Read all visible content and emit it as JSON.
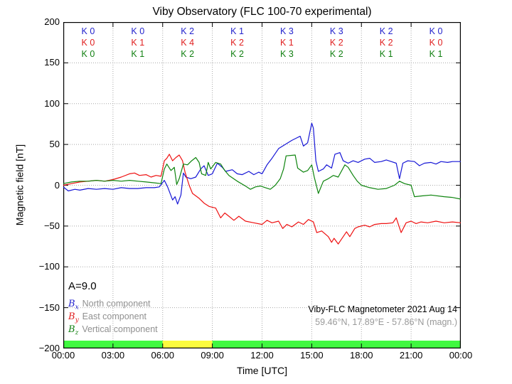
{
  "title": "Viby Observatory (FLC 100-70 experimental)",
  "axes": {
    "ylabel": "Magnetic field [nT]",
    "xlabel": "Time [UTC]",
    "y_ticks": [
      "200",
      "150",
      "100",
      "50",
      "0",
      "−50",
      "−100",
      "−150",
      "−200"
    ],
    "x_ticks": [
      "00:00",
      "03:00",
      "06:00",
      "09:00",
      "12:00",
      "15:00",
      "18:00",
      "21:00",
      "00:00"
    ]
  },
  "k_indices": {
    "rows": [
      {
        "component": "Bx-north",
        "color": "#2323cd",
        "values": [
          "K 0",
          "K 0",
          "K 2",
          "K 1",
          "K 3",
          "K 3",
          "K 2",
          "K 0"
        ]
      },
      {
        "component": "By-east",
        "color": "#e02020",
        "values": [
          "K 0",
          "K 1",
          "K 4",
          "K 2",
          "K 1",
          "K 2",
          "K 2",
          "K 0"
        ]
      },
      {
        "component": "Bz-vertical",
        "color": "#128012",
        "values": [
          "K 0",
          "K 1",
          "K 2",
          "K 2",
          "K 3",
          "K 2",
          "K 1",
          "K 1"
        ]
      }
    ]
  },
  "annotations": {
    "a_index": "A=9.0",
    "station_line1": "Viby-FLC Magnetometer 2021 Aug 14",
    "station_line2": "59.46°N, 17.89°E - 57.86°N (magn.)"
  },
  "legend": [
    {
      "symbol": "B",
      "sub": "x",
      "color": "#2323cd",
      "label": "North component"
    },
    {
      "symbol": "B",
      "sub": "y",
      "color": "#e02020",
      "label": "East component"
    },
    {
      "symbol": "B",
      "sub": "z",
      "color": "#128012",
      "label": "Vertical component"
    }
  ],
  "activity_bar": {
    "segments": [
      {
        "start_hour": 0,
        "end_hour": 6,
        "color": "#40f840"
      },
      {
        "start_hour": 6,
        "end_hour": 9,
        "color": "#fbfb3e"
      },
      {
        "start_hour": 9,
        "end_hour": 24,
        "color": "#40f840"
      }
    ]
  },
  "chart_data": {
    "type": "line",
    "title": "Viby Observatory (FLC 100-70 experimental)",
    "xlabel": "Time [UTC]",
    "ylabel": "Magnetic field [nT]",
    "xlim_hours": [
      0,
      24
    ],
    "ylim": [
      -200,
      200
    ],
    "x_tick_step_hours": 3,
    "y_tick_step": 50,
    "grid": true,
    "legend_position": "lower left",
    "a_index": 9.0,
    "k_index_rows": {
      "Bx": [
        0,
        0,
        2,
        1,
        3,
        3,
        2,
        0
      ],
      "By": [
        0,
        1,
        4,
        2,
        1,
        2,
        2,
        0
      ],
      "Bz": [
        0,
        1,
        2,
        2,
        3,
        2,
        1,
        1
      ]
    },
    "series": [
      {
        "id": "bx-north",
        "name": "Bx North component",
        "color": "#1717d6",
        "points": [
          [
            0,
            -2
          ],
          [
            0.3,
            -7
          ],
          [
            0.7,
            -5
          ],
          [
            1,
            -6
          ],
          [
            1.5,
            -4
          ],
          [
            2,
            -5
          ],
          [
            2.5,
            -4
          ],
          [
            3,
            -5
          ],
          [
            3.5,
            -3
          ],
          [
            4,
            -4
          ],
          [
            4.5,
            -4
          ],
          [
            5,
            -3
          ],
          [
            5.5,
            -3
          ],
          [
            5.8,
            -2
          ],
          [
            6.1,
            6
          ],
          [
            6.3,
            -2
          ],
          [
            6.6,
            -18
          ],
          [
            6.75,
            -14
          ],
          [
            6.9,
            -23
          ],
          [
            7.1,
            -12
          ],
          [
            7.25,
            15
          ],
          [
            7.4,
            10
          ],
          [
            7.7,
            8
          ],
          [
            8,
            10
          ],
          [
            8.3,
            20
          ],
          [
            8.5,
            24
          ],
          [
            8.75,
            12
          ],
          [
            9,
            14
          ],
          [
            9.3,
            27
          ],
          [
            9.6,
            22
          ],
          [
            9.8,
            17
          ],
          [
            10.2,
            19
          ],
          [
            10.5,
            14
          ],
          [
            10.8,
            13
          ],
          [
            11.2,
            17
          ],
          [
            11.5,
            13
          ],
          [
            11.8,
            16
          ],
          [
            12,
            14
          ],
          [
            12.3,
            25
          ],
          [
            12.6,
            33
          ],
          [
            13,
            45
          ],
          [
            13.4,
            50
          ],
          [
            13.8,
            55
          ],
          [
            14.1,
            58
          ],
          [
            14.3,
            60
          ],
          [
            14.5,
            48
          ],
          [
            14.75,
            52
          ],
          [
            15,
            76
          ],
          [
            15.1,
            70
          ],
          [
            15.25,
            30
          ],
          [
            15.4,
            17
          ],
          [
            15.7,
            20
          ],
          [
            15.9,
            25
          ],
          [
            16.2,
            21
          ],
          [
            16.4,
            38
          ],
          [
            16.7,
            40
          ],
          [
            16.9,
            30
          ],
          [
            17.2,
            27
          ],
          [
            17.5,
            30
          ],
          [
            17.8,
            28
          ],
          [
            18.2,
            32
          ],
          [
            18.5,
            33
          ],
          [
            18.8,
            28
          ],
          [
            19.2,
            29
          ],
          [
            19.5,
            31
          ],
          [
            19.8,
            29
          ],
          [
            20.1,
            27
          ],
          [
            20.3,
            8
          ],
          [
            20.5,
            27
          ],
          [
            20.8,
            30
          ],
          [
            21.2,
            29
          ],
          [
            21.5,
            24
          ],
          [
            21.8,
            27
          ],
          [
            22.2,
            28
          ],
          [
            22.5,
            26
          ],
          [
            22.8,
            29
          ],
          [
            23.2,
            28
          ],
          [
            23.5,
            29
          ],
          [
            24,
            29
          ]
        ]
      },
      {
        "id": "by-east",
        "name": "By East component",
        "color": "#ee1111",
        "points": [
          [
            0,
            0
          ],
          [
            0.5,
            2
          ],
          [
            1,
            4
          ],
          [
            1.5,
            5
          ],
          [
            2,
            6
          ],
          [
            2.5,
            5
          ],
          [
            3,
            7
          ],
          [
            3.5,
            10
          ],
          [
            4,
            14
          ],
          [
            4.3,
            15
          ],
          [
            4.6,
            12
          ],
          [
            5,
            13
          ],
          [
            5.3,
            10
          ],
          [
            5.6,
            12
          ],
          [
            5.9,
            11
          ],
          [
            6.1,
            30
          ],
          [
            6.25,
            33
          ],
          [
            6.4,
            38
          ],
          [
            6.6,
            30
          ],
          [
            6.8,
            34
          ],
          [
            7,
            37
          ],
          [
            7.2,
            30
          ],
          [
            7.35,
            16
          ],
          [
            7.6,
            0
          ],
          [
            7.8,
            -10
          ],
          [
            8.2,
            -16
          ],
          [
            8.5,
            -22
          ],
          [
            8.8,
            -26
          ],
          [
            9.2,
            -28
          ],
          [
            9.5,
            -40
          ],
          [
            9.75,
            -34
          ],
          [
            10,
            -38
          ],
          [
            10.3,
            -43
          ],
          [
            10.6,
            -38
          ],
          [
            11,
            -44
          ],
          [
            11.5,
            -46
          ],
          [
            12,
            -48
          ],
          [
            12.3,
            -43
          ],
          [
            12.6,
            -46
          ],
          [
            13,
            -44
          ],
          [
            13.25,
            -53
          ],
          [
            13.5,
            -48
          ],
          [
            13.8,
            -51
          ],
          [
            14.2,
            -45
          ],
          [
            14.5,
            -48
          ],
          [
            14.8,
            -42
          ],
          [
            15.1,
            -45
          ],
          [
            15.3,
            -58
          ],
          [
            15.6,
            -56
          ],
          [
            16,
            -63
          ],
          [
            16.2,
            -70
          ],
          [
            16.35,
            -65
          ],
          [
            16.6,
            -72
          ],
          [
            16.8,
            -66
          ],
          [
            17.1,
            -57
          ],
          [
            17.3,
            -63
          ],
          [
            17.6,
            -53
          ],
          [
            17.8,
            -51
          ],
          [
            18.2,
            -49
          ],
          [
            18.5,
            -51
          ],
          [
            18.8,
            -48
          ],
          [
            19.2,
            -47
          ],
          [
            19.5,
            -47
          ],
          [
            19.9,
            -46
          ],
          [
            20.1,
            -40
          ],
          [
            20.4,
            -58
          ],
          [
            20.7,
            -46
          ],
          [
            21,
            -44
          ],
          [
            21.3,
            -47
          ],
          [
            21.6,
            -45
          ],
          [
            22,
            -46
          ],
          [
            22.5,
            -44
          ],
          [
            23,
            -46
          ],
          [
            23.5,
            -45
          ],
          [
            24,
            -46
          ]
        ]
      },
      {
        "id": "bz-vertical",
        "name": "Bz Vertical component",
        "color": "#0e840e",
        "points": [
          [
            0,
            2
          ],
          [
            0.5,
            4
          ],
          [
            1,
            5
          ],
          [
            1.5,
            5
          ],
          [
            2,
            6
          ],
          [
            2.5,
            5
          ],
          [
            3,
            6
          ],
          [
            3.5,
            5
          ],
          [
            4,
            6
          ],
          [
            4.5,
            5
          ],
          [
            5,
            4
          ],
          [
            5.5,
            3
          ],
          [
            5.9,
            2
          ],
          [
            6.1,
            20
          ],
          [
            6.25,
            26
          ],
          [
            6.5,
            18
          ],
          [
            6.7,
            22
          ],
          [
            6.85,
            1
          ],
          [
            7,
            8
          ],
          [
            7.25,
            26
          ],
          [
            7.5,
            25
          ],
          [
            7.75,
            30
          ],
          [
            8,
            34
          ],
          [
            8.2,
            28
          ],
          [
            8.35,
            14
          ],
          [
            8.6,
            12
          ],
          [
            8.75,
            28
          ],
          [
            8.9,
            20
          ],
          [
            9.2,
            28
          ],
          [
            9.5,
            26
          ],
          [
            9.75,
            18
          ],
          [
            10,
            12
          ],
          [
            10.5,
            5
          ],
          [
            11,
            -1
          ],
          [
            11.3,
            -5
          ],
          [
            11.6,
            -2
          ],
          [
            11.9,
            -1
          ],
          [
            12.2,
            -3
          ],
          [
            12.5,
            -5
          ],
          [
            12.8,
            0
          ],
          [
            13.1,
            8
          ],
          [
            13.3,
            20
          ],
          [
            13.45,
            36
          ],
          [
            14,
            37
          ],
          [
            14.15,
            21
          ],
          [
            14.5,
            16
          ],
          [
            14.75,
            18
          ],
          [
            15,
            25
          ],
          [
            15.15,
            10
          ],
          [
            15.4,
            -10
          ],
          [
            15.7,
            5
          ],
          [
            16,
            8
          ],
          [
            16.3,
            12
          ],
          [
            16.6,
            10
          ],
          [
            17,
            25
          ],
          [
            17.2,
            22
          ],
          [
            17.5,
            12
          ],
          [
            17.75,
            5
          ],
          [
            18,
            0
          ],
          [
            18.5,
            -3
          ],
          [
            19,
            -5
          ],
          [
            19.5,
            -4
          ],
          [
            20,
            0
          ],
          [
            20.3,
            5
          ],
          [
            20.6,
            2
          ],
          [
            21,
            0
          ],
          [
            21.2,
            -14
          ],
          [
            21.7,
            -13
          ],
          [
            22.2,
            -12
          ],
          [
            23,
            -14
          ],
          [
            23.5,
            -15
          ],
          [
            24,
            -17
          ]
        ]
      }
    ]
  }
}
